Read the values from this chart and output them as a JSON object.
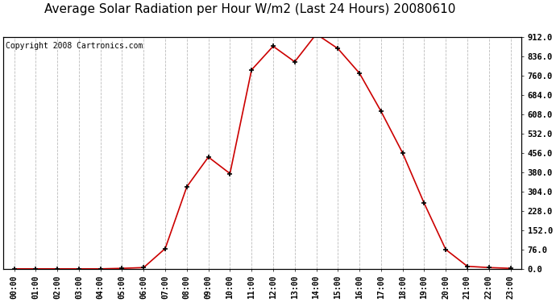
{
  "title": "Average Solar Radiation per Hour W/m2 (Last 24 Hours) 20080610",
  "copyright": "Copyright 2008 Cartronics.com",
  "hours": [
    "00:00",
    "01:00",
    "02:00",
    "03:00",
    "04:00",
    "05:00",
    "06:00",
    "07:00",
    "08:00",
    "09:00",
    "10:00",
    "11:00",
    "12:00",
    "13:00",
    "14:00",
    "15:00",
    "16:00",
    "17:00",
    "18:00",
    "19:00",
    "20:00",
    "21:00",
    "22:00",
    "23:00"
  ],
  "values": [
    0,
    0,
    0,
    0,
    0,
    2,
    5,
    80,
    323,
    440,
    375,
    783,
    876,
    815,
    924,
    867,
    770,
    620,
    456,
    258,
    76,
    10,
    5,
    2
  ],
  "line_color": "#cc0000",
  "marker_color": "#000000",
  "background_color": "#ffffff",
  "grid_color": "#bbbbbb",
  "ylim": [
    0,
    912
  ],
  "yticks": [
    0,
    76,
    152,
    228,
    304,
    380,
    456,
    532,
    608,
    684,
    760,
    836,
    912
  ],
  "title_fontsize": 11,
  "copyright_fontsize": 7
}
